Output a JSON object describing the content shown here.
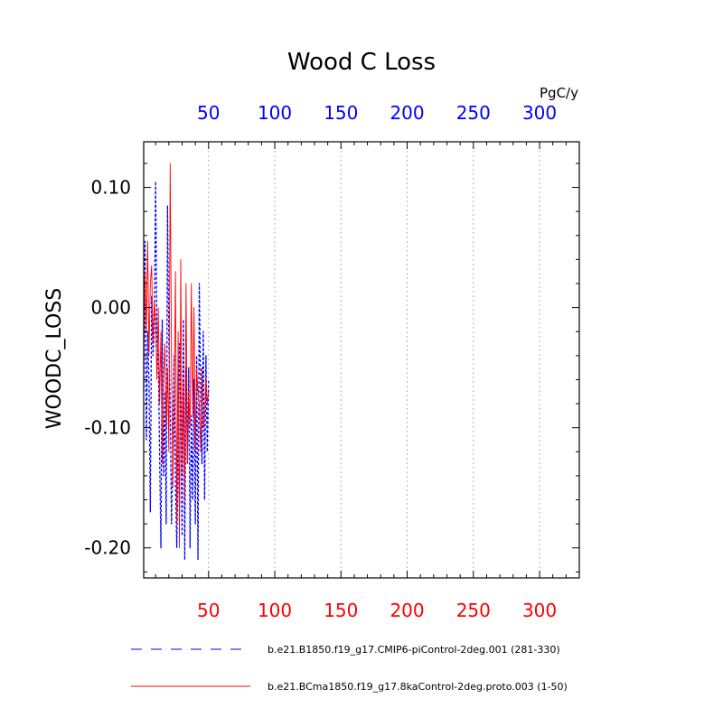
{
  "chart_data": {
    "type": "line",
    "title": "Wood C Loss",
    "units_label": "PgC/y",
    "ylabel": "WOODC_LOSS",
    "xlabel": "",
    "xlim": [
      1,
      330
    ],
    "ylim": [
      -0.225,
      0.138
    ],
    "x_ticks": [
      50,
      100,
      150,
      200,
      250,
      300
    ],
    "x_tick_labels": [
      "50",
      "100",
      "150",
      "200",
      "250",
      "300"
    ],
    "y_ticks": [
      0.1,
      0.0,
      -0.1,
      -0.2
    ],
    "y_tick_labels": [
      "0.10",
      "0.00",
      "-0.10",
      "-0.20"
    ],
    "top_axis_color": "#0000ff",
    "bottom_axis_color": "#ff0000",
    "grid": "vertical dotted at major x ticks",
    "series": [
      {
        "name": "b.e21.B1850.f19_g17.CMIP6-piControl-2deg.001 (281-330)",
        "color": "#0000ff",
        "style": "dashed",
        "x": [
          1,
          2,
          3,
          4,
          5,
          6,
          7,
          8,
          9,
          10,
          11,
          12,
          13,
          14,
          15,
          16,
          17,
          18,
          19,
          20,
          21,
          22,
          23,
          24,
          25,
          26,
          27,
          28,
          29,
          30,
          31,
          32,
          33,
          34,
          35,
          36,
          37,
          38,
          39,
          40,
          41,
          42,
          43,
          44,
          45,
          46,
          47,
          48,
          49,
          50
        ],
        "values": [
          -0.07,
          0.055,
          -0.11,
          -0.02,
          -0.06,
          -0.17,
          0.01,
          -0.04,
          -0.02,
          0.105,
          -0.03,
          -0.04,
          -0.12,
          -0.2,
          -0.01,
          -0.14,
          -0.07,
          -0.18,
          0.085,
          -0.03,
          -0.08,
          -0.18,
          -0.12,
          -0.04,
          -0.15,
          -0.2,
          -0.13,
          -0.03,
          -0.09,
          -0.19,
          -0.01,
          -0.21,
          -0.05,
          -0.13,
          -0.05,
          -0.2,
          -0.09,
          -0.16,
          -0.06,
          -0.18,
          -0.04,
          -0.21,
          0.02,
          -0.07,
          -0.13,
          -0.02,
          -0.16,
          -0.04,
          -0.12,
          -0.06
        ]
      },
      {
        "name": "b.e21.BCma1850.f19_g17.8kaControl-2deg.proto.003 (1-50)",
        "color": "#ff0000",
        "style": "solid",
        "x": [
          1,
          2,
          3,
          4,
          5,
          6,
          7,
          8,
          9,
          10,
          11,
          12,
          13,
          14,
          15,
          16,
          17,
          18,
          19,
          20,
          21,
          22,
          23,
          24,
          25,
          26,
          27,
          28,
          29,
          30,
          31,
          32,
          33,
          34,
          35,
          36,
          37,
          38,
          39,
          40,
          41,
          42,
          43,
          44,
          45,
          46,
          47,
          48,
          49,
          50
        ],
        "values": [
          -0.05,
          0.03,
          -0.02,
          0.055,
          -0.04,
          0.02,
          0.035,
          -0.03,
          0.005,
          -0.01,
          -0.06,
          0.0,
          -0.08,
          -0.02,
          -0.13,
          -0.06,
          -0.03,
          -0.1,
          -0.05,
          -0.12,
          0.12,
          -0.04,
          -0.15,
          -0.08,
          0.03,
          -0.18,
          -0.02,
          -0.2,
          0.04,
          -0.14,
          -0.06,
          -0.16,
          0.02,
          -0.13,
          -0.07,
          -0.1,
          0.02,
          -0.09,
          0.0,
          -0.12,
          -0.05,
          -0.07,
          -0.08,
          -0.12,
          -0.05,
          -0.1,
          -0.09,
          -0.06,
          -0.08,
          -0.07
        ]
      }
    ],
    "legend": {
      "placement": "bottom",
      "entries": [
        {
          "label": "b.e21.B1850.f19_g17.CMIP6-piControl-2deg.001 (281-330)",
          "color": "#0000ff",
          "style": "dashed"
        },
        {
          "label": "b.e21.BCma1850.f19_g17.8kaControl-2deg.proto.003 (1-50)",
          "color": "#ff0000",
          "style": "solid"
        }
      ]
    }
  }
}
